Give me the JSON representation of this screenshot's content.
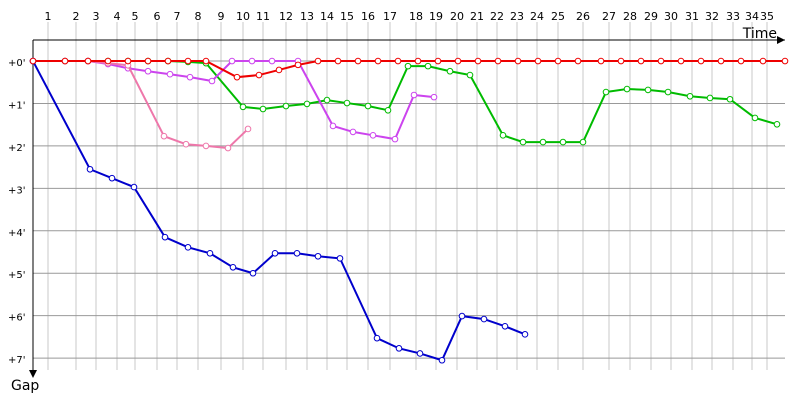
{
  "chart_data": {
    "type": "line",
    "x_label": "Time",
    "y_label": "Gap",
    "xlim": [
      0,
      752
    ],
    "ylim": [
      -0.92,
      7.28
    ],
    "xticks": [
      {
        "value": 15,
        "label": "1"
      },
      {
        "value": 43,
        "label": "2"
      },
      {
        "value": 63,
        "label": "3"
      },
      {
        "value": 84,
        "label": "4"
      },
      {
        "value": 102,
        "label": "5"
      },
      {
        "value": 124,
        "label": "6"
      },
      {
        "value": 144,
        "label": "7"
      },
      {
        "value": 165,
        "label": "8"
      },
      {
        "value": 188,
        "label": "9"
      },
      {
        "value": 210,
        "label": "10"
      },
      {
        "value": 230,
        "label": "11"
      },
      {
        "value": 253,
        "label": "12"
      },
      {
        "value": 274,
        "label": "13"
      },
      {
        "value": 294,
        "label": "14"
      },
      {
        "value": 314,
        "label": "15"
      },
      {
        "value": 335,
        "label": "16"
      },
      {
        "value": 357,
        "label": "17"
      },
      {
        "value": 383,
        "label": "18"
      },
      {
        "value": 403,
        "label": "19"
      },
      {
        "value": 424,
        "label": "20"
      },
      {
        "value": 444,
        "label": "21"
      },
      {
        "value": 464,
        "label": "22"
      },
      {
        "value": 484,
        "label": "23"
      },
      {
        "value": 504,
        "label": "24"
      },
      {
        "value": 525,
        "label": "25"
      },
      {
        "value": 550,
        "label": "26"
      },
      {
        "value": 576,
        "label": "27"
      },
      {
        "value": 597,
        "label": "28"
      },
      {
        "value": 618,
        "label": "29"
      },
      {
        "value": 638,
        "label": "30"
      },
      {
        "value": 659,
        "label": "31"
      },
      {
        "value": 679,
        "label": "32"
      },
      {
        "value": 700,
        "label": "33"
      },
      {
        "value": 719,
        "label": "34"
      },
      {
        "value": 734,
        "label": "35"
      }
    ],
    "yticks": [
      {
        "value": 0,
        "label": "+0'"
      },
      {
        "value": 1,
        "label": "+1'"
      },
      {
        "value": 2,
        "label": "+2'"
      },
      {
        "value": 3,
        "label": "+3'"
      },
      {
        "value": 4,
        "label": "+4'"
      },
      {
        "value": 5,
        "label": "+5'"
      },
      {
        "value": 6,
        "label": "+6'"
      },
      {
        "value": 7,
        "label": "+7'"
      }
    ],
    "grid": true,
    "series": [
      {
        "color": "#00bb00",
        "x": [
          0,
          32,
          55,
          75,
          95,
          115,
          135,
          155,
          173,
          210,
          230,
          253,
          274,
          294,
          314,
          335,
          355,
          375,
          395,
          417,
          437,
          470,
          490,
          510,
          530,
          550,
          573,
          594,
          615,
          635,
          657,
          677,
          697,
          722,
          744
        ],
        "values": [
          0,
          0,
          0,
          0,
          0,
          0,
          0,
          0.02,
          0.05,
          1.08,
          1.13,
          1.06,
          1.01,
          0.92,
          0.99,
          1.06,
          1.16,
          0.12,
          0.12,
          0.24,
          0.33,
          1.75,
          1.91,
          1.91,
          1.91,
          1.91,
          0.73,
          0.66,
          0.68,
          0.73,
          0.83,
          0.87,
          0.9,
          1.34,
          1.49
        ]
      },
      {
        "color": "#cc44ee",
        "x": [
          0,
          32,
          55,
          75,
          95,
          115,
          137,
          157,
          179,
          199,
          219,
          239,
          265,
          300,
          320,
          340,
          362,
          381,
          401
        ],
        "values": [
          0,
          0,
          0,
          0.07,
          0.17,
          0.24,
          0.31,
          0.38,
          0.47,
          0,
          0,
          0,
          0,
          1.53,
          1.67,
          1.75,
          1.84,
          0.8,
          0.85
        ]
      },
      {
        "color": "#ee77aa",
        "x": [
          0,
          32,
          55,
          75,
          95,
          131,
          153,
          173,
          195,
          215
        ],
        "values": [
          0,
          0,
          0,
          0.05,
          0.1,
          1.77,
          1.96,
          2.0,
          2.05,
          1.6
        ]
      },
      {
        "color": "#0000cc",
        "x": [
          0,
          57,
          79,
          101,
          132,
          155,
          177,
          200,
          220,
          242,
          264,
          285,
          307,
          344,
          366,
          387,
          409,
          429,
          451,
          472,
          492
        ],
        "values": [
          0,
          2.55,
          2.76,
          2.97,
          4.15,
          4.39,
          4.53,
          4.86,
          5.0,
          4.53,
          4.53,
          4.6,
          4.65,
          6.53,
          6.77,
          6.89,
          7.05,
          6.01,
          6.08,
          6.25,
          6.44
        ]
      },
      {
        "color": "#ee0000",
        "x": [
          0,
          32,
          55,
          75,
          95,
          115,
          135,
          155,
          173,
          204,
          226,
          246,
          265,
          285,
          305,
          325,
          345,
          365,
          385,
          405,
          425,
          445,
          465,
          485,
          505,
          525,
          545,
          568,
          588,
          608,
          628,
          648,
          668,
          688,
          708,
          730,
          752
        ],
        "values": [
          0,
          0,
          0,
          0,
          0,
          0,
          0,
          0,
          0,
          0.38,
          0.33,
          0.21,
          0.09,
          0,
          0,
          0,
          0,
          0,
          0,
          0,
          0,
          0,
          0,
          0,
          0,
          0,
          0,
          0,
          0,
          0,
          0,
          0,
          0,
          0,
          0,
          0,
          0
        ]
      }
    ]
  }
}
